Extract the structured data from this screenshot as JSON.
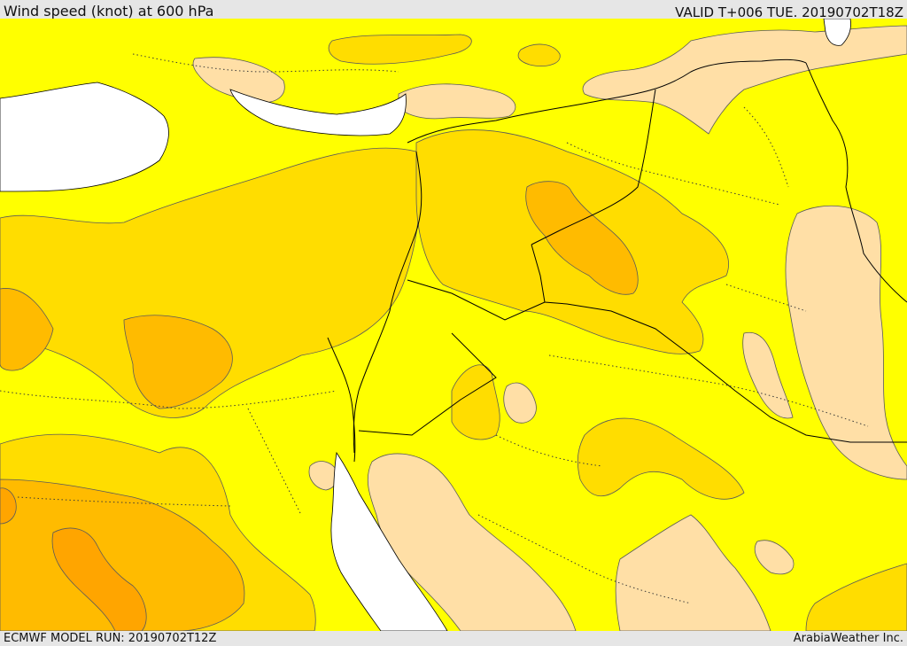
{
  "header": {
    "title": "Wind speed (knot) at 600 hPa",
    "valid": "VALID T+006 TUE. 20190702T18Z"
  },
  "footer": {
    "model_run": "ECMWF MODEL RUN: 20190702T12Z",
    "credit": "ArabiaWeather Inc."
  },
  "map": {
    "colors": {
      "sea": "#ffffff",
      "light": "#ffdfa6",
      "base": "#ffff00",
      "medium": "#ffdd00",
      "strong": "#ffbb00",
      "stronger": "#ffa500",
      "border": "#000000",
      "contour": "#5a5a5a"
    }
  }
}
